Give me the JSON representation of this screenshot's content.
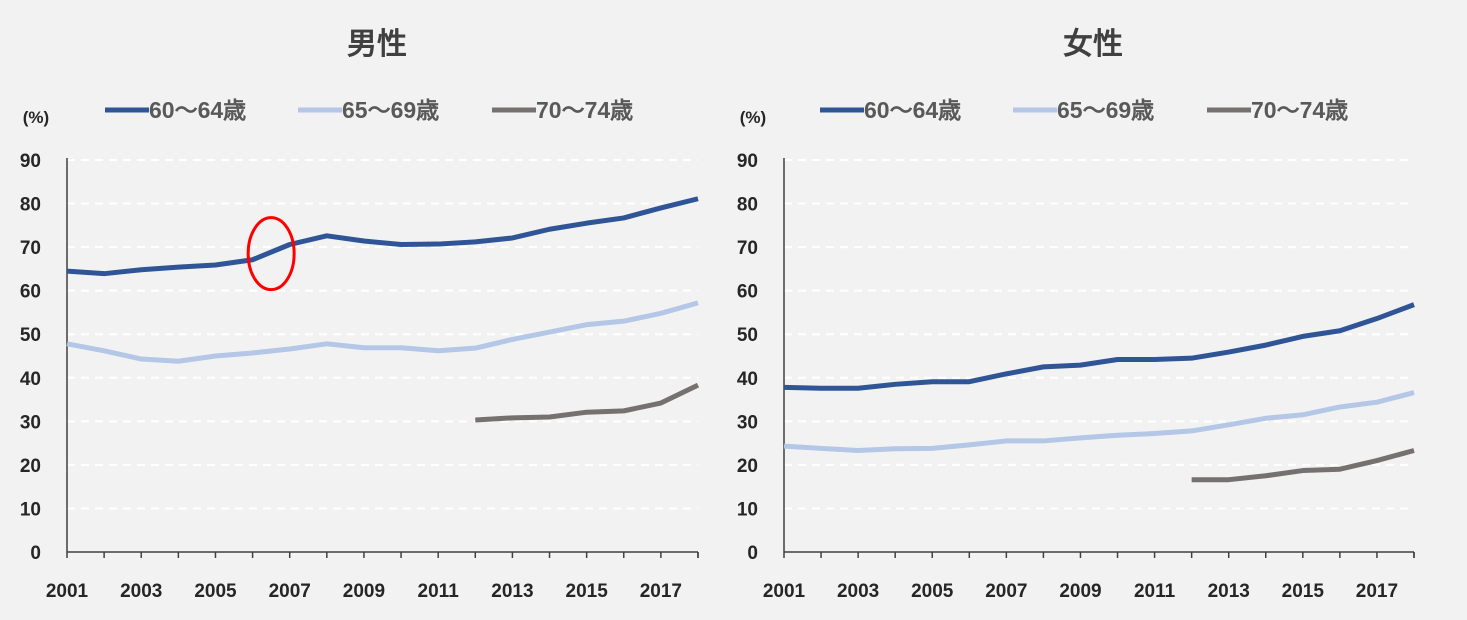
{
  "chart_data": [
    {
      "type": "line",
      "title": "男性",
      "unit": "(%)",
      "ylim": [
        0,
        90
      ],
      "yticks": [
        0,
        10,
        20,
        30,
        40,
        50,
        60,
        70,
        80,
        90
      ],
      "x": [
        2001,
        2002,
        2003,
        2004,
        2005,
        2006,
        2007,
        2008,
        2009,
        2010,
        2011,
        2012,
        2013,
        2014,
        2015,
        2016,
        2017,
        2018
      ],
      "xtick_labels": [
        "2001",
        "2003",
        "2005",
        "2007",
        "2009",
        "2011",
        "2013",
        "2015",
        "2017"
      ],
      "grid": true,
      "legend_position": "top",
      "annotation": "red-ellipse",
      "annotation_x": 2006.5,
      "annotation_y": 68.5,
      "series": [
        {
          "name": "60～64歳",
          "color": "#2f5597",
          "values": [
            64.5,
            63.9,
            64.8,
            65.4,
            65.9,
            67.1,
            70.6,
            72.6,
            71.4,
            70.6,
            70.7,
            71.2,
            72.1,
            74.1,
            75.5,
            76.7,
            79.0,
            81.1
          ]
        },
        {
          "name": "65～69歳",
          "color": "#b4c7e7",
          "values": [
            47.8,
            46.2,
            44.3,
            43.8,
            45.0,
            45.7,
            46.6,
            47.8,
            46.9,
            46.9,
            46.2,
            46.8,
            48.8,
            50.5,
            52.2,
            53.0,
            54.8,
            57.2
          ]
        },
        {
          "name": "70～74歳",
          "color": "#767171",
          "values": [
            null,
            null,
            null,
            null,
            null,
            null,
            null,
            null,
            null,
            null,
            null,
            30.3,
            30.8,
            31.0,
            32.1,
            32.4,
            34.2,
            38.3
          ]
        }
      ]
    },
    {
      "type": "line",
      "title": "女性",
      "unit": "(%)",
      "ylim": [
        0,
        90
      ],
      "yticks": [
        0,
        10,
        20,
        30,
        40,
        50,
        60,
        70,
        80,
        90
      ],
      "x": [
        2001,
        2002,
        2003,
        2004,
        2005,
        2006,
        2007,
        2008,
        2009,
        2010,
        2011,
        2012,
        2013,
        2014,
        2015,
        2016,
        2017,
        2018
      ],
      "xtick_labels": [
        "2001",
        "2003",
        "2005",
        "2007",
        "2009",
        "2011",
        "2013",
        "2015",
        "2017"
      ],
      "grid": true,
      "legend_position": "top",
      "series": [
        {
          "name": "60～64歳",
          "color": "#2f5597",
          "values": [
            37.8,
            37.6,
            37.6,
            38.5,
            39.1,
            39.1,
            40.9,
            42.5,
            42.9,
            44.2,
            44.2,
            44.5,
            45.9,
            47.5,
            49.5,
            50.8,
            53.6,
            56.8
          ]
        },
        {
          "name": "65～69歳",
          "color": "#b4c7e7",
          "values": [
            24.3,
            23.8,
            23.3,
            23.7,
            23.8,
            24.6,
            25.5,
            25.5,
            26.2,
            26.8,
            27.2,
            27.8,
            29.2,
            30.7,
            31.5,
            33.3,
            34.4,
            36.6
          ]
        },
        {
          "name": "70～74歳",
          "color": "#767171",
          "values": [
            null,
            null,
            null,
            null,
            null,
            null,
            null,
            null,
            null,
            null,
            null,
            16.6,
            16.6,
            17.5,
            18.7,
            19.0,
            21.0,
            23.3
          ]
        }
      ]
    }
  ]
}
